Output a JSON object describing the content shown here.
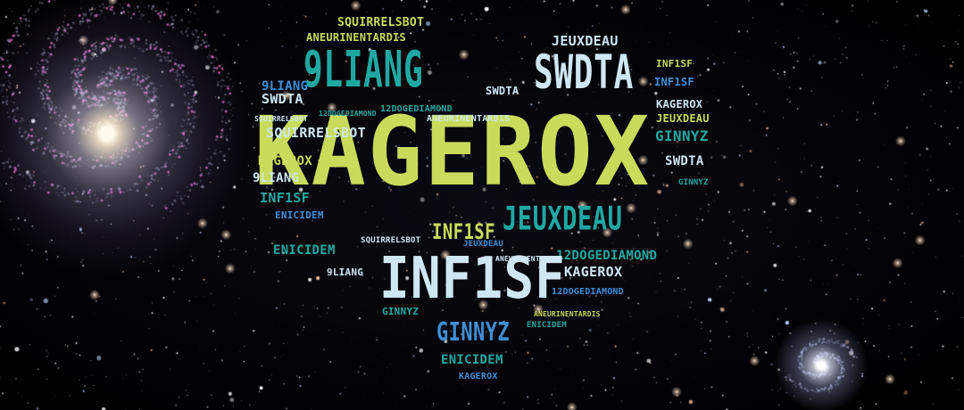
{
  "colors": {
    "lime": "#c9db5b",
    "teal": "#1fa8a3",
    "light_blue": "#cfe7f3",
    "blue": "#3f8fd6",
    "background": "#000000"
  },
  "word_cloud": {
    "words": [
      "SQUIRRELSBOT",
      "ANEURINENTARDIS",
      "9LIANG",
      "JEUXDEAU",
      "SWDTA",
      "INF1SF",
      "SWDTA",
      "9LIANG",
      "SWDTA",
      "INF1SF",
      "KAGEROX",
      "SQUIRRELSBOT",
      "12DOGEDIAMOND",
      "12DOGEDIAMOND",
      "ANEURINENTARDIS",
      "JEUXDEAU",
      "SQUIRRELSBOT",
      "GINNYZ",
      "KAGEROX",
      "KAGEROX",
      "SWDTA",
      "9LIANG",
      "GINNYZ",
      "INF1SF",
      "JEUXDEAU",
      "ENICIDEM",
      "INF1SF",
      "SQUIRRELSBOT",
      "JEUXDEAU",
      "ANEURINENTARDIS",
      "ENICIDEM",
      "12DOGEDIAMOND",
      "KAGEROX",
      "INF1SF",
      "9LIANG",
      "12DOGEDIAMOND",
      "ANEURINENTARDIS",
      "GINNYZ",
      "ENICIDEM",
      "GINNYZ",
      "ENICIDEM",
      "KAGEROX"
    ]
  }
}
